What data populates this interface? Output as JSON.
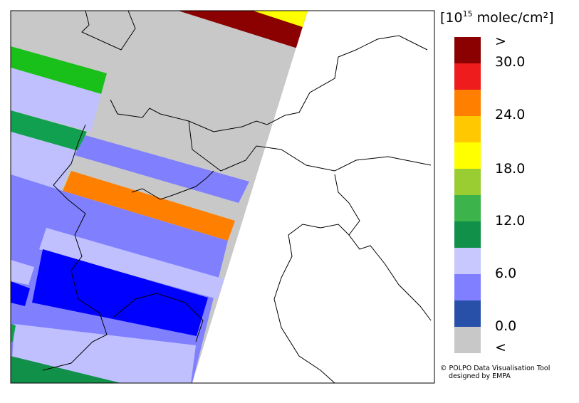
{
  "legend": {
    "title_start": "[10",
    "title_exponent": "15",
    "title_end": " molec/cm²]",
    "labels": [
      ">",
      "30.0",
      "24.0",
      "18.0",
      "12.0",
      "6.0",
      "0.0",
      "<"
    ],
    "colors": [
      "#8b0000",
      "#ee1c1c",
      "#ff7f00",
      "#ffc800",
      "#ffff00",
      "#9acd32",
      "#3cb44b",
      "#109048",
      "#c8c8ff",
      "#7f7fff",
      "#2850a8",
      "#c8c8c8"
    ]
  },
  "credits": {
    "line1": "© POLPO Data Visualisation Tool",
    "line2": "designed by EMPA"
  }
}
